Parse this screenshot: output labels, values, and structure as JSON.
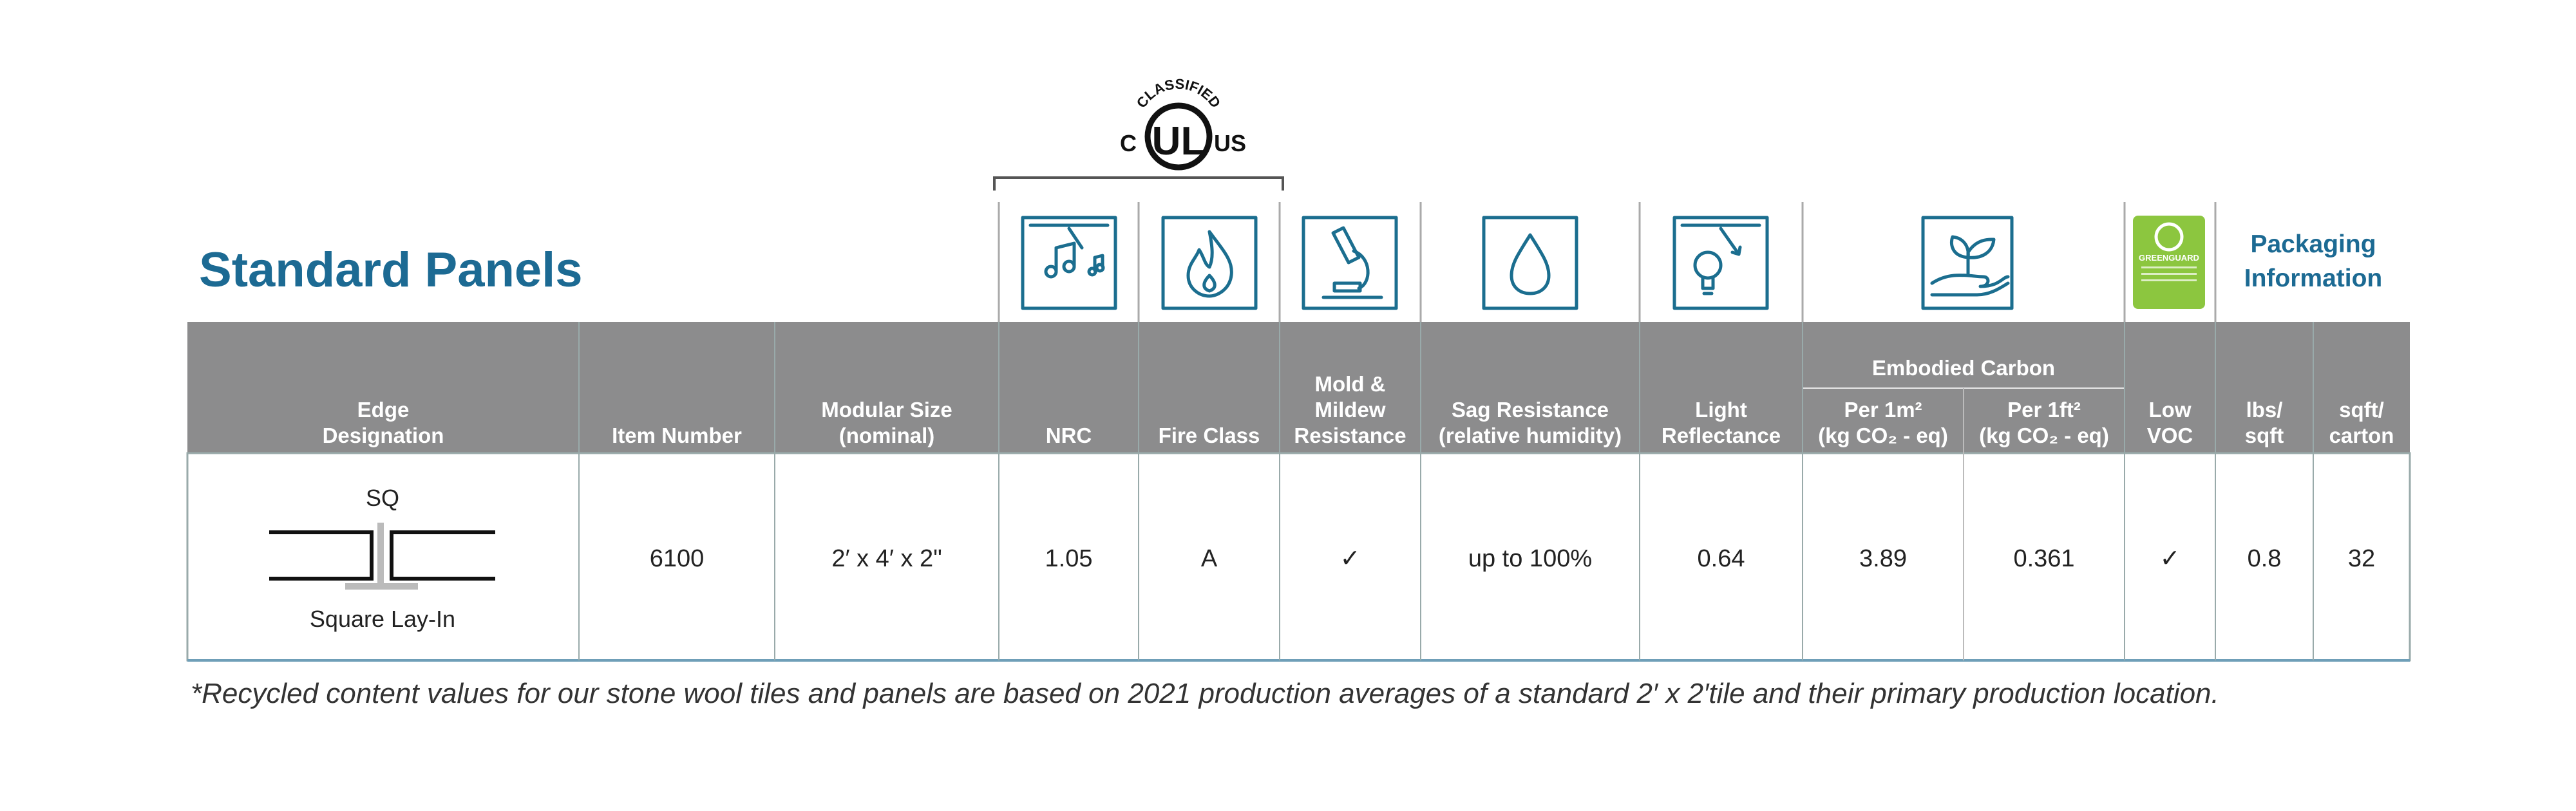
{
  "title": "Standard Panels",
  "packaging": [
    "Packaging",
    "Information"
  ],
  "ul_logo": {
    "top": "CLASSIFIED",
    "left": "C",
    "right": "US"
  },
  "greenguard": "GREENGUARD",
  "group_header": "Embodied Carbon",
  "columns": [
    [
      "Edge",
      "Designation"
    ],
    [
      "Item Number"
    ],
    [
      "Modular Size",
      "(nominal)"
    ],
    [
      "NRC"
    ],
    [
      "Fire Class"
    ],
    [
      "Mold &",
      "Mildew",
      "Resistance"
    ],
    [
      "Sag Resistance",
      "(relative humidity)"
    ],
    [
      "Light",
      "Reflectance"
    ],
    [
      "Per 1m²",
      "(kg CO₂ - eq)"
    ],
    [
      "Per 1ft²",
      "(kg CO₂ - eq)"
    ],
    [
      "Low",
      "VOC"
    ],
    [
      "lbs/",
      "sqft"
    ],
    [
      "sqft/",
      "carton"
    ]
  ],
  "row": {
    "edge_code": "SQ",
    "edge_name": "Square Lay-In",
    "cells": [
      "6100",
      "2′ x 4′ x 2\"",
      "1.05",
      "A",
      "✓",
      "up to 100%",
      "0.64",
      "3.89",
      "0.361",
      "✓",
      "0.8",
      "32"
    ]
  },
  "footnote": "*Recycled content values for our stone wool tiles and panels are based on 2021 production averages of a standard 2′ x 2′tile and their primary production location."
}
